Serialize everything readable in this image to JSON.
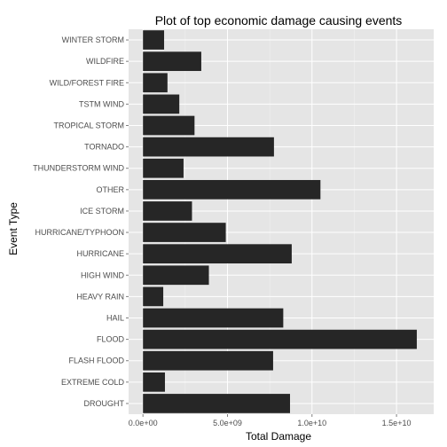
{
  "chart_data": {
    "type": "bar",
    "orientation": "horizontal",
    "title": "Plot of top economic damage causing events",
    "xlabel": "Total Damage",
    "ylabel": "Event Type",
    "categories": [
      "DROUGHT",
      "EXTREME COLD",
      "FLASH FLOOD",
      "FLOOD",
      "HAIL",
      "HEAVY RAIN",
      "HIGH WIND",
      "HURRICANE",
      "HURRICANE/TYPHOON",
      "ICE STORM",
      "OTHER",
      "THUNDERSTORM WIND",
      "TORNADO",
      "TROPICAL STORM",
      "TSTM WIND",
      "WILD/FOREST FIRE",
      "WILDFIRE",
      "WINTER STORM"
    ],
    "values": [
      8700000000.0,
      1300000000.0,
      7700000000.0,
      16200000000.0,
      8300000000.0,
      1200000000.0,
      3900000000.0,
      8800000000.0,
      4900000000.0,
      2900000000.0,
      10500000000.0,
      2400000000.0,
      7750000000.0,
      3050000000.0,
      2150000000.0,
      1450000000.0,
      3450000000.0,
      1250000000.0
    ],
    "xlim": [
      -850000000.0,
      17200000000.0
    ],
    "xticks": [
      0,
      5000000000.0,
      10000000000.0,
      15000000000.0
    ],
    "xtick_labels": [
      "0.0e+00",
      "5.0e+09",
      "1.0e+10",
      "1.5e+10"
    ],
    "grid": true,
    "colors": {
      "panel_background": "#e5e5e5",
      "grid_major": "#ffffff",
      "grid_minor": "#f2f2f2",
      "bar_fill": "#262626",
      "tick_text": "#4d4d4d"
    }
  }
}
